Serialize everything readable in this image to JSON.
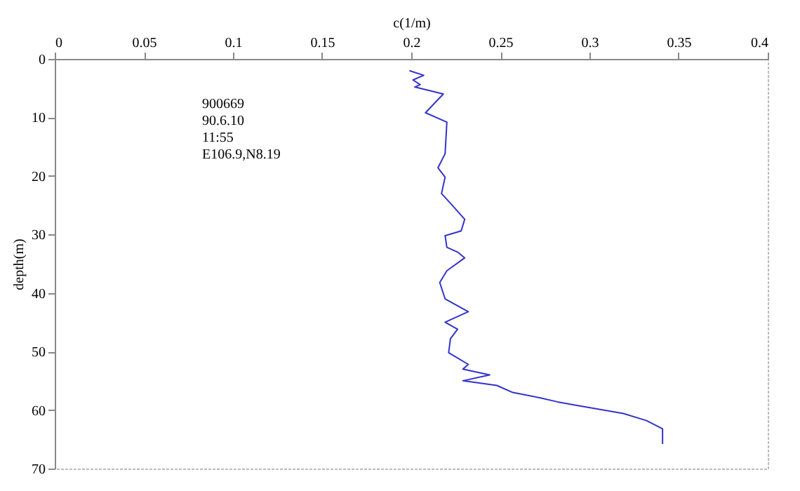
{
  "chart_data": {
    "type": "line",
    "xlabel": "c(1/m)",
    "ylabel": "depth(m)",
    "annotations": [
      "900669",
      "90.6.10",
      "11:55",
      "E106.9,N8.19"
    ],
    "xlim": [
      0,
      0.4
    ],
    "xticks": [
      0,
      0.05,
      0.1,
      0.15,
      0.2,
      0.25,
      0.3,
      0.35,
      0.4
    ],
    "ylim": [
      70,
      0
    ],
    "yticks": [
      0,
      10,
      20,
      30,
      40,
      50,
      60,
      70
    ],
    "grid": false,
    "series": [
      {
        "color": "#3333cc",
        "x": [
          0.199,
          0.207,
          0.201,
          0.205,
          0.202,
          0.218,
          0.208,
          0.22,
          0.219,
          0.215,
          0.219,
          0.217,
          0.223,
          0.23,
          0.228,
          0.219,
          0.22,
          0.226,
          0.23,
          0.22,
          0.216,
          0.219,
          0.232,
          0.219,
          0.226,
          0.222,
          0.221,
          0.232,
          0.229,
          0.244,
          0.229,
          0.248,
          0.257,
          0.272,
          0.282,
          0.293,
          0.319,
          0.332,
          0.341,
          0.341,
          0.341
        ],
        "values": [
          2.0,
          2.8,
          3.6,
          4.4,
          4.8,
          6.0,
          9.2,
          10.8,
          16.2,
          18.6,
          20.2,
          23.0,
          25.0,
          27.4,
          29.4,
          30.2,
          32.2,
          33.0,
          34.0,
          36.2,
          38.2,
          41.0,
          43.2,
          45.0,
          46.2,
          47.8,
          50.2,
          52.2,
          53.0,
          54.0,
          55.0,
          55.8,
          57.0,
          57.9,
          58.6,
          59.2,
          60.6,
          61.8,
          63.2,
          64.1,
          65.8
        ]
      }
    ]
  }
}
